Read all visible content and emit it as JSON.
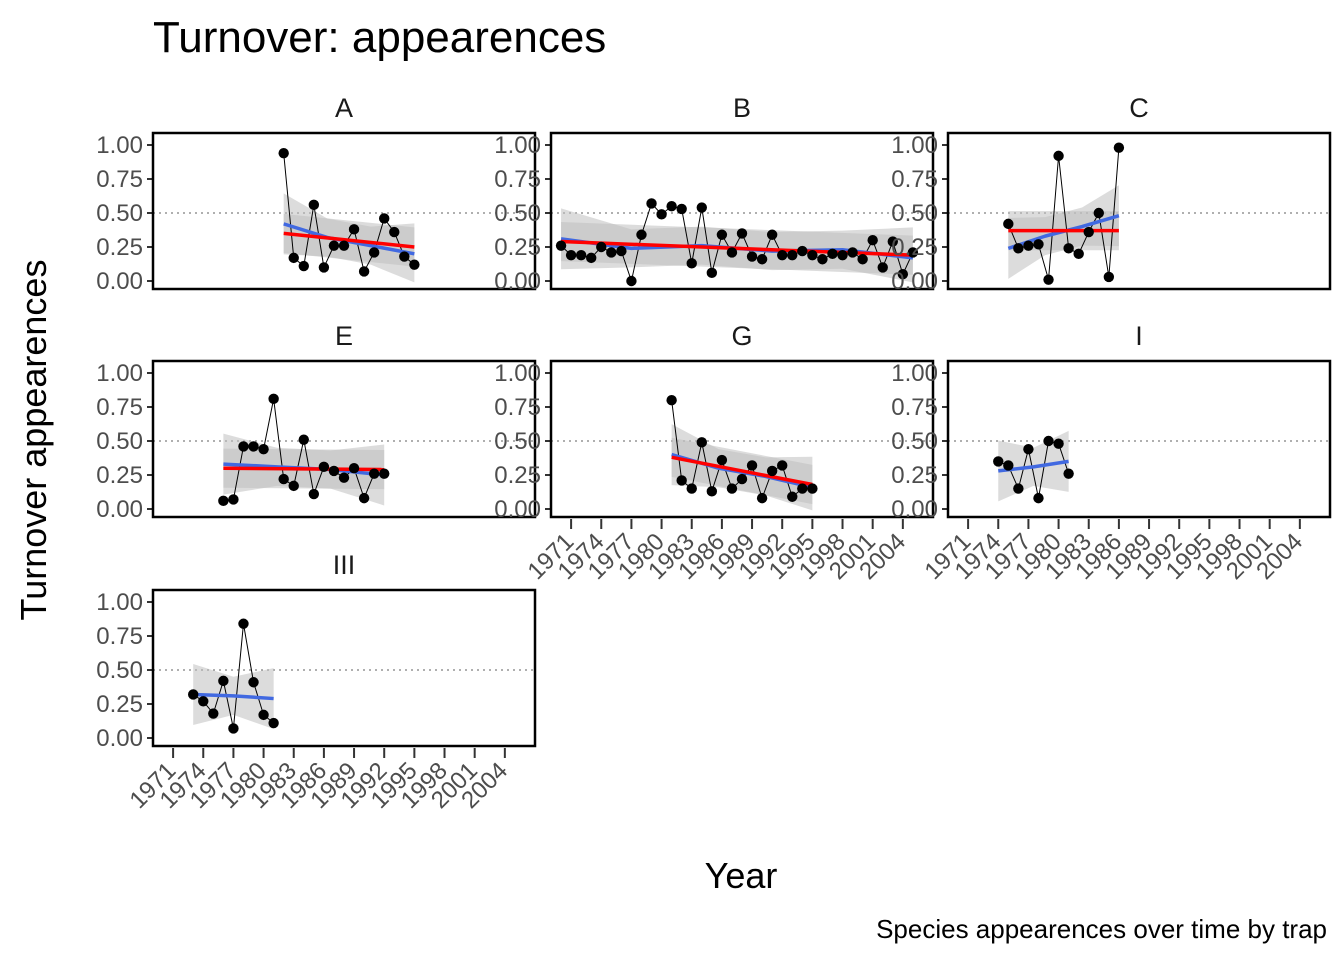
{
  "title": "Turnover: appearences",
  "caption": "Species appearences over time by trap",
  "chart_data": {
    "type": "line",
    "title": "Turnover: appearences",
    "xlabel": "Year",
    "ylabel": "Turnover appearences",
    "caption": "Species appearences over time by trap",
    "xlim": [
      1969,
      2007
    ],
    "ylim": [
      0,
      1
    ],
    "x_ticks": [
      "1971",
      "1974",
      "1977",
      "1980",
      "1983",
      "1986",
      "1989",
      "1992",
      "1995",
      "1998",
      "2001",
      "2004"
    ],
    "y_ticks": [
      "0.00",
      "0.25",
      "0.50",
      "0.75",
      "1.00"
    ],
    "reference_line_y": 0.5,
    "colors": {
      "points": "#000000",
      "lm": "#ff0000",
      "loess": "#4169e1",
      "ribbon": "#bfbfbf",
      "reference": "#7f7f7f"
    },
    "panels": [
      {
        "label": "A",
        "x": [
          1982,
          1983,
          1984,
          1985,
          1986,
          1987,
          1988,
          1989,
          1990,
          1991,
          1992,
          1993,
          1994,
          1995
        ],
        "y": [
          0.94,
          0.17,
          0.11,
          0.56,
          0.1,
          0.26,
          0.26,
          0.38,
          0.07,
          0.21,
          0.46,
          0.36,
          0.18,
          0.12
        ],
        "lm": [
          0.35,
          0.25
        ],
        "loess": [
          0.42,
          0.32,
          0.26,
          0.2
        ]
      },
      {
        "label": "B",
        "x": [
          1970,
          1971,
          1972,
          1973,
          1974,
          1975,
          1976,
          1977,
          1978,
          1979,
          1980,
          1981,
          1982,
          1983,
          1984,
          1985,
          1986,
          1987,
          1988,
          1989,
          1990,
          1991,
          1992,
          1993,
          1994,
          1995,
          1996,
          1997,
          1998,
          1999,
          2000,
          2001,
          2002,
          2003,
          2004,
          2005
        ],
        "y": [
          0.26,
          0.19,
          0.19,
          0.17,
          0.25,
          0.21,
          0.22,
          0.0,
          0.34,
          0.57,
          0.49,
          0.55,
          0.53,
          0.13,
          0.54,
          0.06,
          0.34,
          0.21,
          0.35,
          0.18,
          0.16,
          0.34,
          0.19,
          0.19,
          0.22,
          0.19,
          0.16,
          0.2,
          0.19,
          0.21,
          0.16,
          0.3,
          0.1,
          0.29,
          0.05,
          0.21
        ],
        "lm": [
          0.29,
          0.19
        ],
        "loess": [
          0.31,
          0.24,
          0.26,
          0.22,
          0.23,
          0.17
        ]
      },
      {
        "label": "C",
        "x": [
          1975,
          1976,
          1977,
          1978,
          1979,
          1980,
          1981,
          1982,
          1983,
          1984,
          1985,
          1986
        ],
        "y": [
          0.42,
          0.24,
          0.26,
          0.27,
          0.01,
          0.92,
          0.24,
          0.2,
          0.36,
          0.5,
          0.03,
          0.98
        ],
        "lm": [
          0.37,
          0.37
        ],
        "loess": [
          0.24,
          0.33,
          0.4,
          0.48
        ]
      },
      {
        "label": "E",
        "x": [
          1976,
          1977,
          1978,
          1979,
          1980,
          1981,
          1982,
          1983,
          1984,
          1985,
          1986,
          1987,
          1988,
          1989,
          1990,
          1991,
          1992
        ],
        "y": [
          0.06,
          0.07,
          0.46,
          0.46,
          0.44,
          0.81,
          0.22,
          0.17,
          0.51,
          0.11,
          0.31,
          0.28,
          0.23,
          0.3,
          0.08,
          0.26,
          0.26
        ],
        "lm": [
          0.3,
          0.29
        ],
        "loess": [
          0.33,
          0.31,
          0.29,
          0.25
        ]
      },
      {
        "label": "G",
        "x": [
          1981,
          1982,
          1983,
          1984,
          1985,
          1986,
          1987,
          1988,
          1989,
          1990,
          1991,
          1992,
          1993,
          1994,
          1995
        ],
        "y": [
          0.8,
          0.21,
          0.15,
          0.49,
          0.13,
          0.36,
          0.15,
          0.22,
          0.32,
          0.08,
          0.28,
          0.32,
          0.09,
          0.15,
          0.15
        ],
        "lm": [
          0.38,
          0.18
        ],
        "loess": [
          0.4,
          0.3,
          0.24,
          0.16
        ]
      },
      {
        "label": "I",
        "x": [
          1974,
          1975,
          1976,
          1977,
          1978,
          1979,
          1980,
          1981
        ],
        "y": [
          0.35,
          0.32,
          0.15,
          0.44,
          0.08,
          0.5,
          0.48,
          0.26
        ],
        "lm": null,
        "loess": [
          0.28,
          0.31,
          0.35
        ]
      },
      {
        "label": "III",
        "x": [
          1973,
          1974,
          1975,
          1976,
          1977,
          1978,
          1979,
          1980,
          1981
        ],
        "y": [
          0.32,
          0.27,
          0.18,
          0.42,
          0.07,
          0.84,
          0.41,
          0.17,
          0.11
        ],
        "lm": null,
        "loess": [
          0.32,
          0.31,
          0.29
        ]
      }
    ]
  }
}
